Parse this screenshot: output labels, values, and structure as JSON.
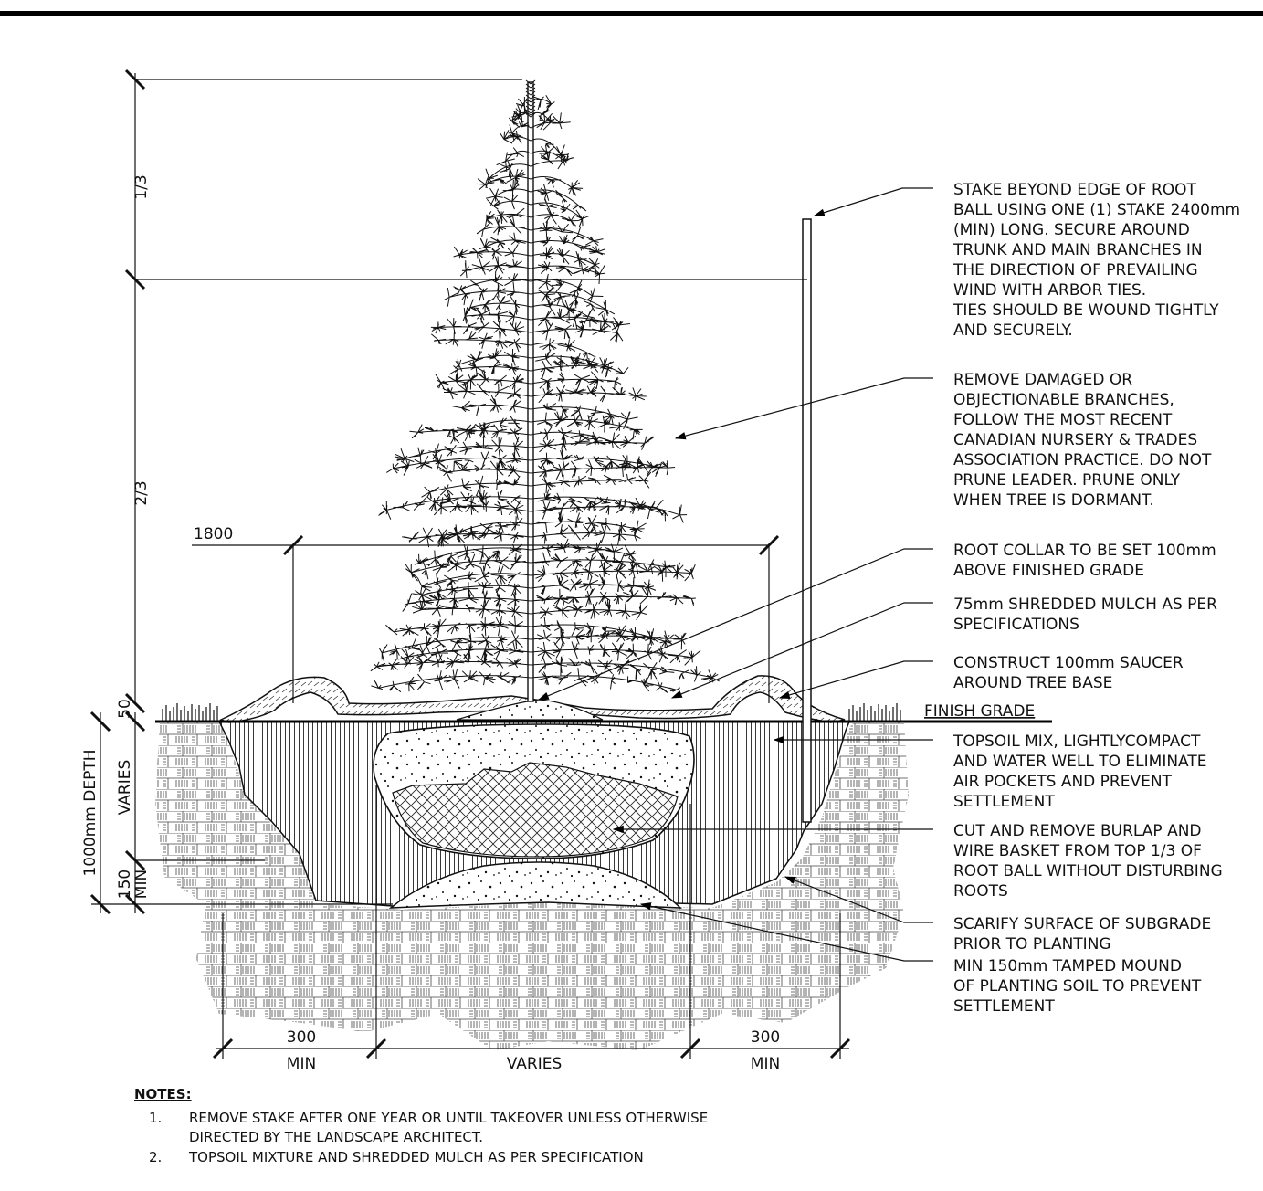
{
  "callouts": [
    {
      "lines": [
        "STAKE BEYOND EDGE OF ROOT",
        "BALL USING ONE (1) STAKE 2400mm",
        "(MIN) LONG. SECURE AROUND",
        "TRUNK AND MAIN BRANCHES IN",
        "THE DIRECTION OF PREVAILING",
        "WIND WITH ARBOR TIES.",
        "TIES SHOULD BE WOUND TIGHTLY",
        "AND SECURELY."
      ]
    },
    {
      "lines": [
        "REMOVE DAMAGED OR",
        "OBJECTIONABLE BRANCHES,",
        "FOLLOW THE MOST RECENT",
        "CANADIAN NURSERY & TRADES",
        "ASSOCIATION PRACTICE.  DO NOT",
        "PRUNE LEADER. PRUNE ONLY",
        "WHEN TREE IS DORMANT."
      ]
    },
    {
      "lines": [
        "ROOT COLLAR TO BE SET 100mm",
        "ABOVE FINISHED GRADE"
      ]
    },
    {
      "lines": [
        "75mm SHREDDED MULCH AS PER",
        "SPECIFICATIONS"
      ]
    },
    {
      "lines": [
        "CONSTRUCT 100mm SAUCER",
        "AROUND TREE BASE"
      ]
    },
    {
      "lines": [
        "FINISH GRADE"
      ]
    },
    {
      "lines": [
        "TOPSOIL MIX, LIGHTLYCOMPACT",
        "AND WATER WELL TO ELIMINATE",
        "AIR POCKETS AND PREVENT",
        "SETTLEMENT"
      ]
    },
    {
      "lines": [
        "CUT AND REMOVE BURLAP AND",
        "WIRE BASKET FROM TOP 1/3 OF",
        "ROOT BALL WITHOUT DISTURBING",
        "ROOTS"
      ]
    },
    {
      "lines": [
        "SCARIFY SURFACE OF SUBGRADE",
        "PRIOR TO PLANTING"
      ]
    },
    {
      "lines": [
        "MIN 150mm TAMPED MOUND",
        "OF PLANTING SOIL TO PREVENT",
        "SETTLEMENT"
      ]
    }
  ],
  "dimensions": {
    "top_third": "1/3",
    "two_thirds": "2/3",
    "root_ball_width": "1800",
    "collar_height": "50",
    "depth": "1000mm DEPTH",
    "varies_vertical": "VARIES",
    "base_mound": "150",
    "base_mound_min": "MIN",
    "side_left": "300",
    "side_left_min": "MIN",
    "center_width": "VARIES",
    "side_right": "300",
    "side_right_min": "MIN"
  },
  "notes": {
    "title": "NOTES:",
    "items": [
      {
        "num": "1.",
        "lines": [
          "REMOVE STAKE AFTER ONE YEAR OR UNTIL TAKEOVER UNLESS OTHERWISE",
          "DIRECTED BY THE LANDSCAPE ARCHITECT."
        ]
      },
      {
        "num": "2.",
        "lines": [
          "TOPSOIL MIXTURE AND SHREDDED MULCH AS PER SPECIFICATION"
        ]
      }
    ]
  }
}
